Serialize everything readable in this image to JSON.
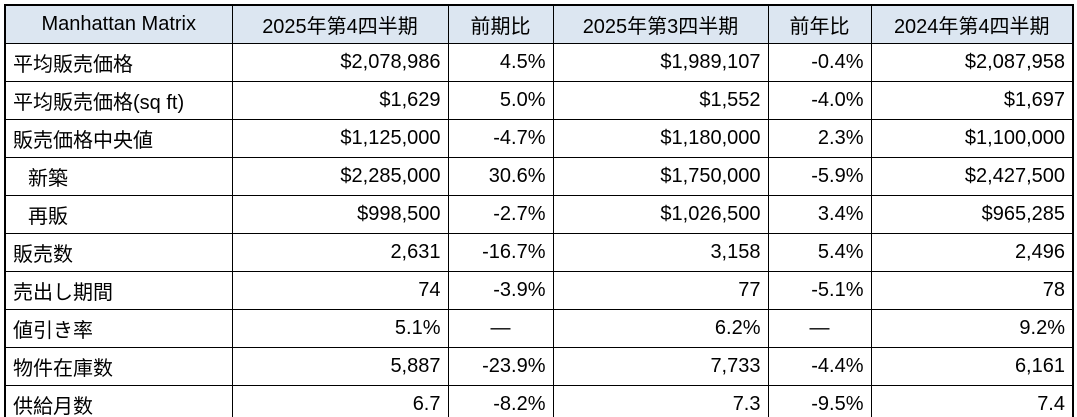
{
  "colors": {
    "header_bg": "#DCE6F1",
    "border": "#000000",
    "text": "#000000",
    "background": "#FFFFFF"
  },
  "chart_data": {
    "type": "table",
    "title": "Manhattan Matrix",
    "columns": [
      "2025年第4四半期",
      "前期比",
      "2025年第3四半期",
      "前年比",
      "2024年第4四半期"
    ],
    "rows": [
      {
        "label": "平均販売価格",
        "indent": false,
        "values": [
          "$2,078,986",
          "4.5%",
          "$1,989,107",
          "-0.4%",
          "$2,087,958"
        ]
      },
      {
        "label": "平均販売価格(sq ft)",
        "indent": false,
        "values": [
          "$1,629",
          "5.0%",
          "$1,552",
          "-4.0%",
          "$1,697"
        ]
      },
      {
        "label": "販売価格中央値",
        "indent": false,
        "values": [
          "$1,125,000",
          "-4.7%",
          "$1,180,000",
          "2.3%",
          "$1,100,000"
        ]
      },
      {
        "label": "新築",
        "indent": true,
        "values": [
          "$2,285,000",
          "30.6%",
          "$1,750,000",
          "-5.9%",
          "$2,427,500"
        ]
      },
      {
        "label": "再販",
        "indent": true,
        "values": [
          "$998,500",
          "-2.7%",
          "$1,026,500",
          "3.4%",
          "$965,285"
        ]
      },
      {
        "label": "販売数",
        "indent": false,
        "values": [
          "2,631",
          "-16.7%",
          "3,158",
          "5.4%",
          "2,496"
        ]
      },
      {
        "label": "売出し期間",
        "indent": false,
        "values": [
          "74",
          "-3.9%",
          "77",
          "-5.1%",
          "78"
        ]
      },
      {
        "label": "値引き率",
        "indent": false,
        "values": [
          "5.1%",
          "—",
          "6.2%",
          "—",
          "9.2%"
        ]
      },
      {
        "label": "物件在庫数",
        "indent": false,
        "values": [
          "5,887",
          "-23.9%",
          "7,733",
          "-4.4%",
          "6,161"
        ]
      },
      {
        "label": "供給月数",
        "indent": false,
        "values": [
          "6.7",
          "-8.2%",
          "7.3",
          "-9.5%",
          "7.4"
        ]
      }
    ]
  }
}
